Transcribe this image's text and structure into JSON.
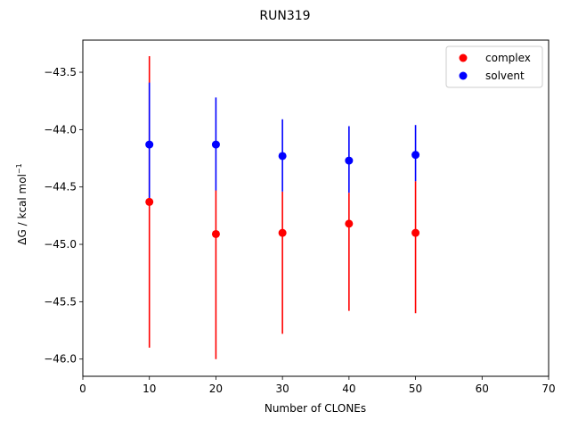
{
  "chart_data": {
    "type": "scatter",
    "title": "RUN319",
    "xlabel": "Number of CLONEs",
    "ylabel_main": "ΔG / kcal mol",
    "ylabel_sup": "−1",
    "xlim": [
      0,
      70
    ],
    "ylim": [
      -46.15,
      -43.22
    ],
    "xticks": [
      0,
      10,
      20,
      30,
      40,
      50,
      60,
      70
    ],
    "xtick_labels": [
      "0",
      "10",
      "20",
      "30",
      "40",
      "50",
      "60",
      "70"
    ],
    "yticks": [
      -43.5,
      -44.0,
      -44.5,
      -45.0,
      -45.5,
      -46.0
    ],
    "ytick_labels": [
      "−43.5",
      "−44.0",
      "−44.5",
      "−45.0",
      "−45.5",
      "−46.0"
    ],
    "grid": false,
    "legend_position": "top-right",
    "series": [
      {
        "name": "complex",
        "color": "#ff0000",
        "x": [
          10,
          20,
          30,
          40,
          50
        ],
        "y": [
          -44.63,
          -44.91,
          -44.9,
          -44.82,
          -44.9
        ],
        "err_low": [
          -45.9,
          -46.0,
          -45.78,
          -45.58,
          -45.6
        ],
        "err_high": [
          -43.36,
          -44.53,
          -44.54,
          -44.55,
          -44.45
        ]
      },
      {
        "name": "solvent",
        "color": "#0000ff",
        "x": [
          10,
          20,
          30,
          40,
          50
        ],
        "y": [
          -44.13,
          -44.13,
          -44.23,
          -44.27,
          -44.22
        ],
        "err_low": [
          -44.63,
          -44.53,
          -44.54,
          -44.55,
          -44.45
        ],
        "err_high": [
          -43.59,
          -43.72,
          -43.91,
          -43.97,
          -43.96
        ]
      }
    ]
  }
}
